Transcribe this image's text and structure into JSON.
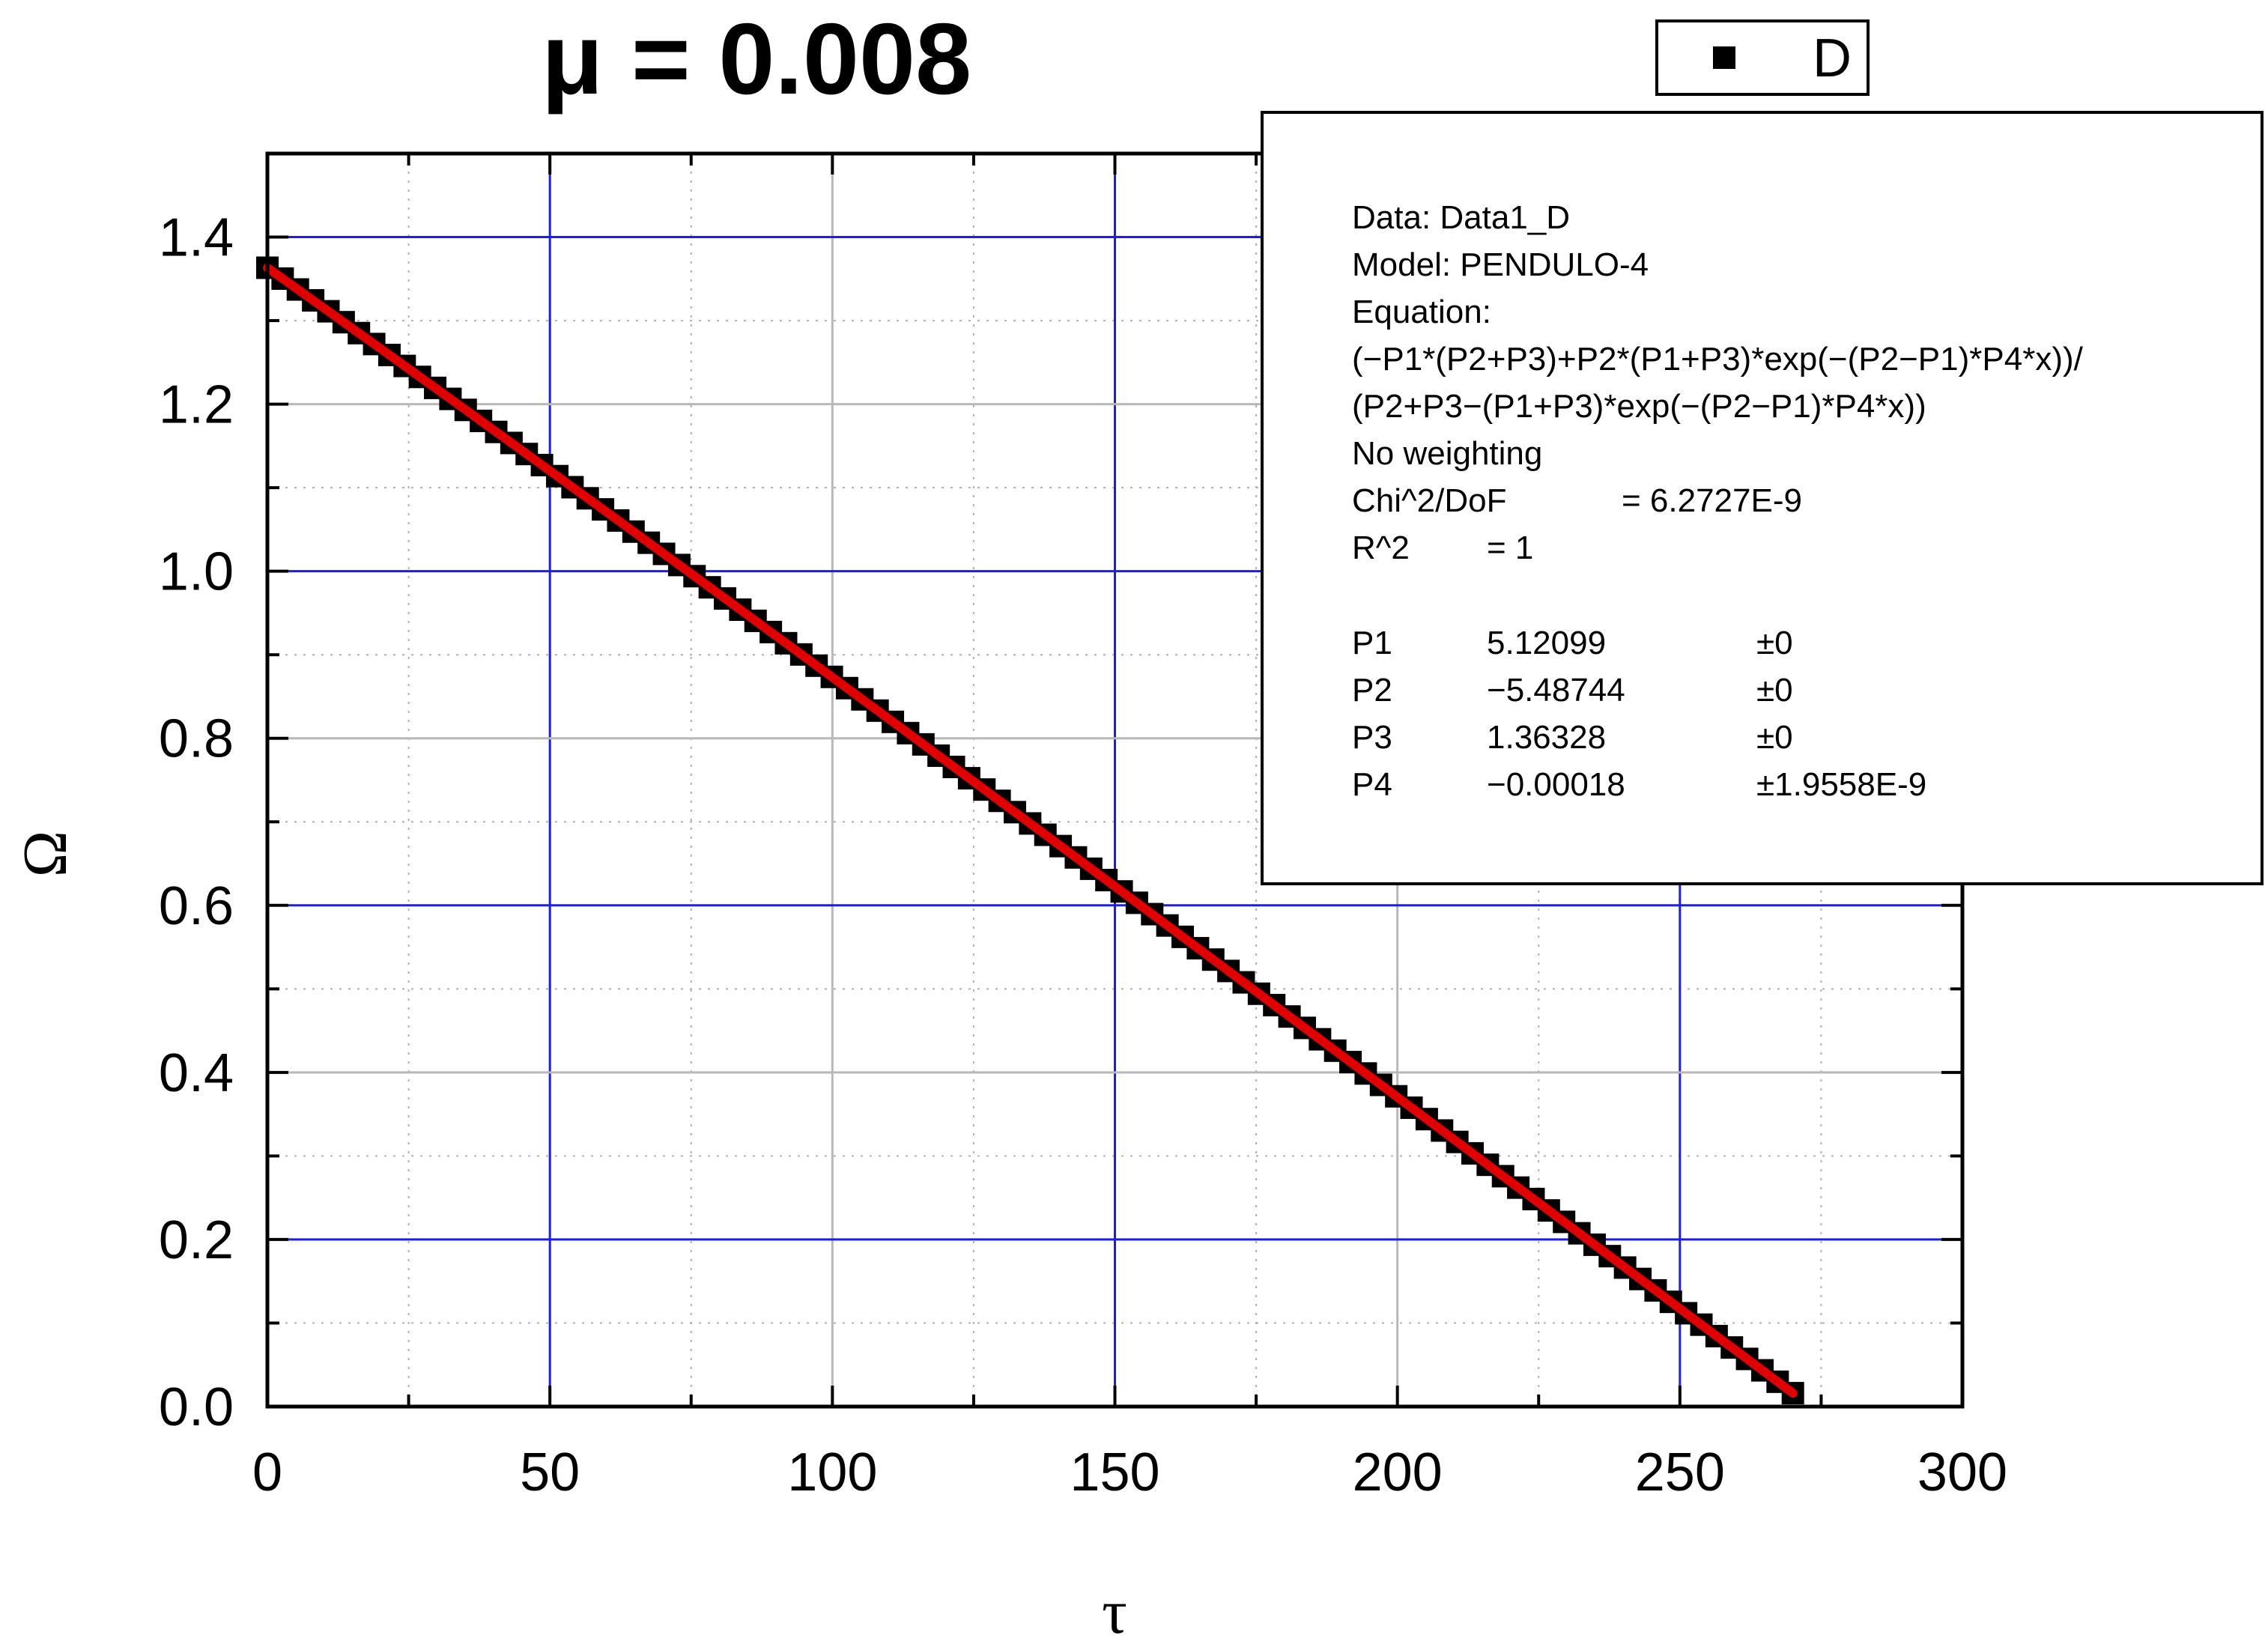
{
  "chart_data": {
    "type": "scatter",
    "title": "μ = 0.008",
    "xlabel": "τ",
    "ylabel": "Ω",
    "xlim": [
      0,
      300
    ],
    "ylim": [
      0,
      1.5
    ],
    "x_ticks": [
      "0",
      "50",
      "100",
      "150",
      "200",
      "250",
      "300"
    ],
    "y_ticks": [
      "0.0",
      "0.2",
      "0.4",
      "0.6",
      "0.8",
      "1.0",
      "1.2",
      "1.4"
    ],
    "grid": true,
    "legend": {
      "position": "top-right",
      "entries": [
        {
          "label": "D",
          "marker": "square",
          "color": "#000000"
        }
      ]
    },
    "series": [
      {
        "name": "D",
        "kind": "markers",
        "color": "#000000",
        "x_start": 0,
        "x_end": 270,
        "x_step": 2.7,
        "note_formula_params": {
          "P1": 5.12099,
          "P2": -5.48744,
          "P3": 1.36328,
          "P4": -0.00018
        }
      },
      {
        "kind": "fit-line",
        "color": "#e00000",
        "x_start": 0,
        "x_end": 270
      }
    ],
    "fit_box": {
      "lines": [
        "Data: Data1_D",
        "Model: PENDULO-4",
        "Equation:",
        "(−P1*(P2+P3)+P2*(P1+P3)*exp(−(P2−P1)*P4*x))/",
        "(P2+P3−(P1+P3)*exp(−(P2−P1)*P4*x))",
        "No weighting"
      ],
      "chi_label": "Chi^2/DoF",
      "chi_value": "= 6.2727E-9",
      "r2_label": "R^2",
      "r2_value": "=  1",
      "params": [
        {
          "name": "P1",
          "value": "5.12099",
          "err": "±0"
        },
        {
          "name": "P2",
          "value": "−5.48744",
          "err": "±0"
        },
        {
          "name": "P3",
          "value": "1.36328",
          "err": "±0"
        },
        {
          "name": "P4",
          "value": "−0.00018",
          "err": "±1.9558E-9"
        }
      ]
    }
  }
}
